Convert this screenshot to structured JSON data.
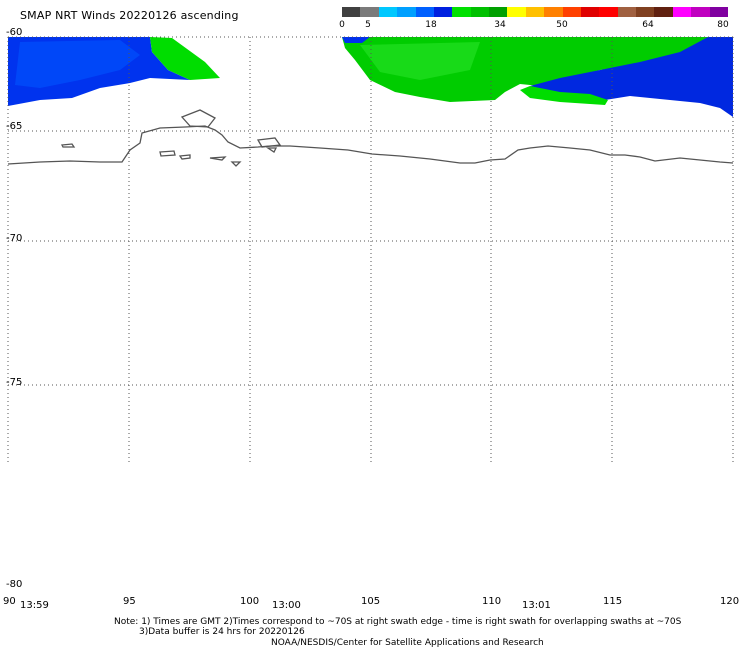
{
  "title": "SMAP NRT Winds 20220126 ascending",
  "colorbar": {
    "labels": [
      "0",
      "5",
      "18",
      "34",
      "50",
      "64",
      "80"
    ],
    "colors": [
      "#404040",
      "#7a7a7a",
      "#00c8ff",
      "#00a0ff",
      "#0060ff",
      "#0020e0",
      "#00e000",
      "#00c000",
      "#00a000",
      "#ffff00",
      "#ffc000",
      "#ff8000",
      "#ff4000",
      "#e00000",
      "#ff0000",
      "#a06040",
      "#804020",
      "#602010",
      "#ff00ff",
      "#c000c0",
      "#8000a0"
    ]
  },
  "map": {
    "lat_labels": [
      "-60",
      "-65",
      "-70",
      "-75",
      "-80"
    ],
    "lon_labels": [
      "90",
      "95",
      "100",
      "105",
      "110",
      "115",
      "120"
    ],
    "time_labels": [
      "13:59",
      "13:00",
      "13:01"
    ]
  },
  "notes": {
    "line1": "Note: 1) Times are GMT 2)Times correspond to ~70S at right swath edge - time is right swath for overlapping swaths at ~70S",
    "line2": "3)Data buffer is 24 hrs for 20220126",
    "line3": "NOAA/NESDIS/Center for Satellite Applications and Research"
  }
}
